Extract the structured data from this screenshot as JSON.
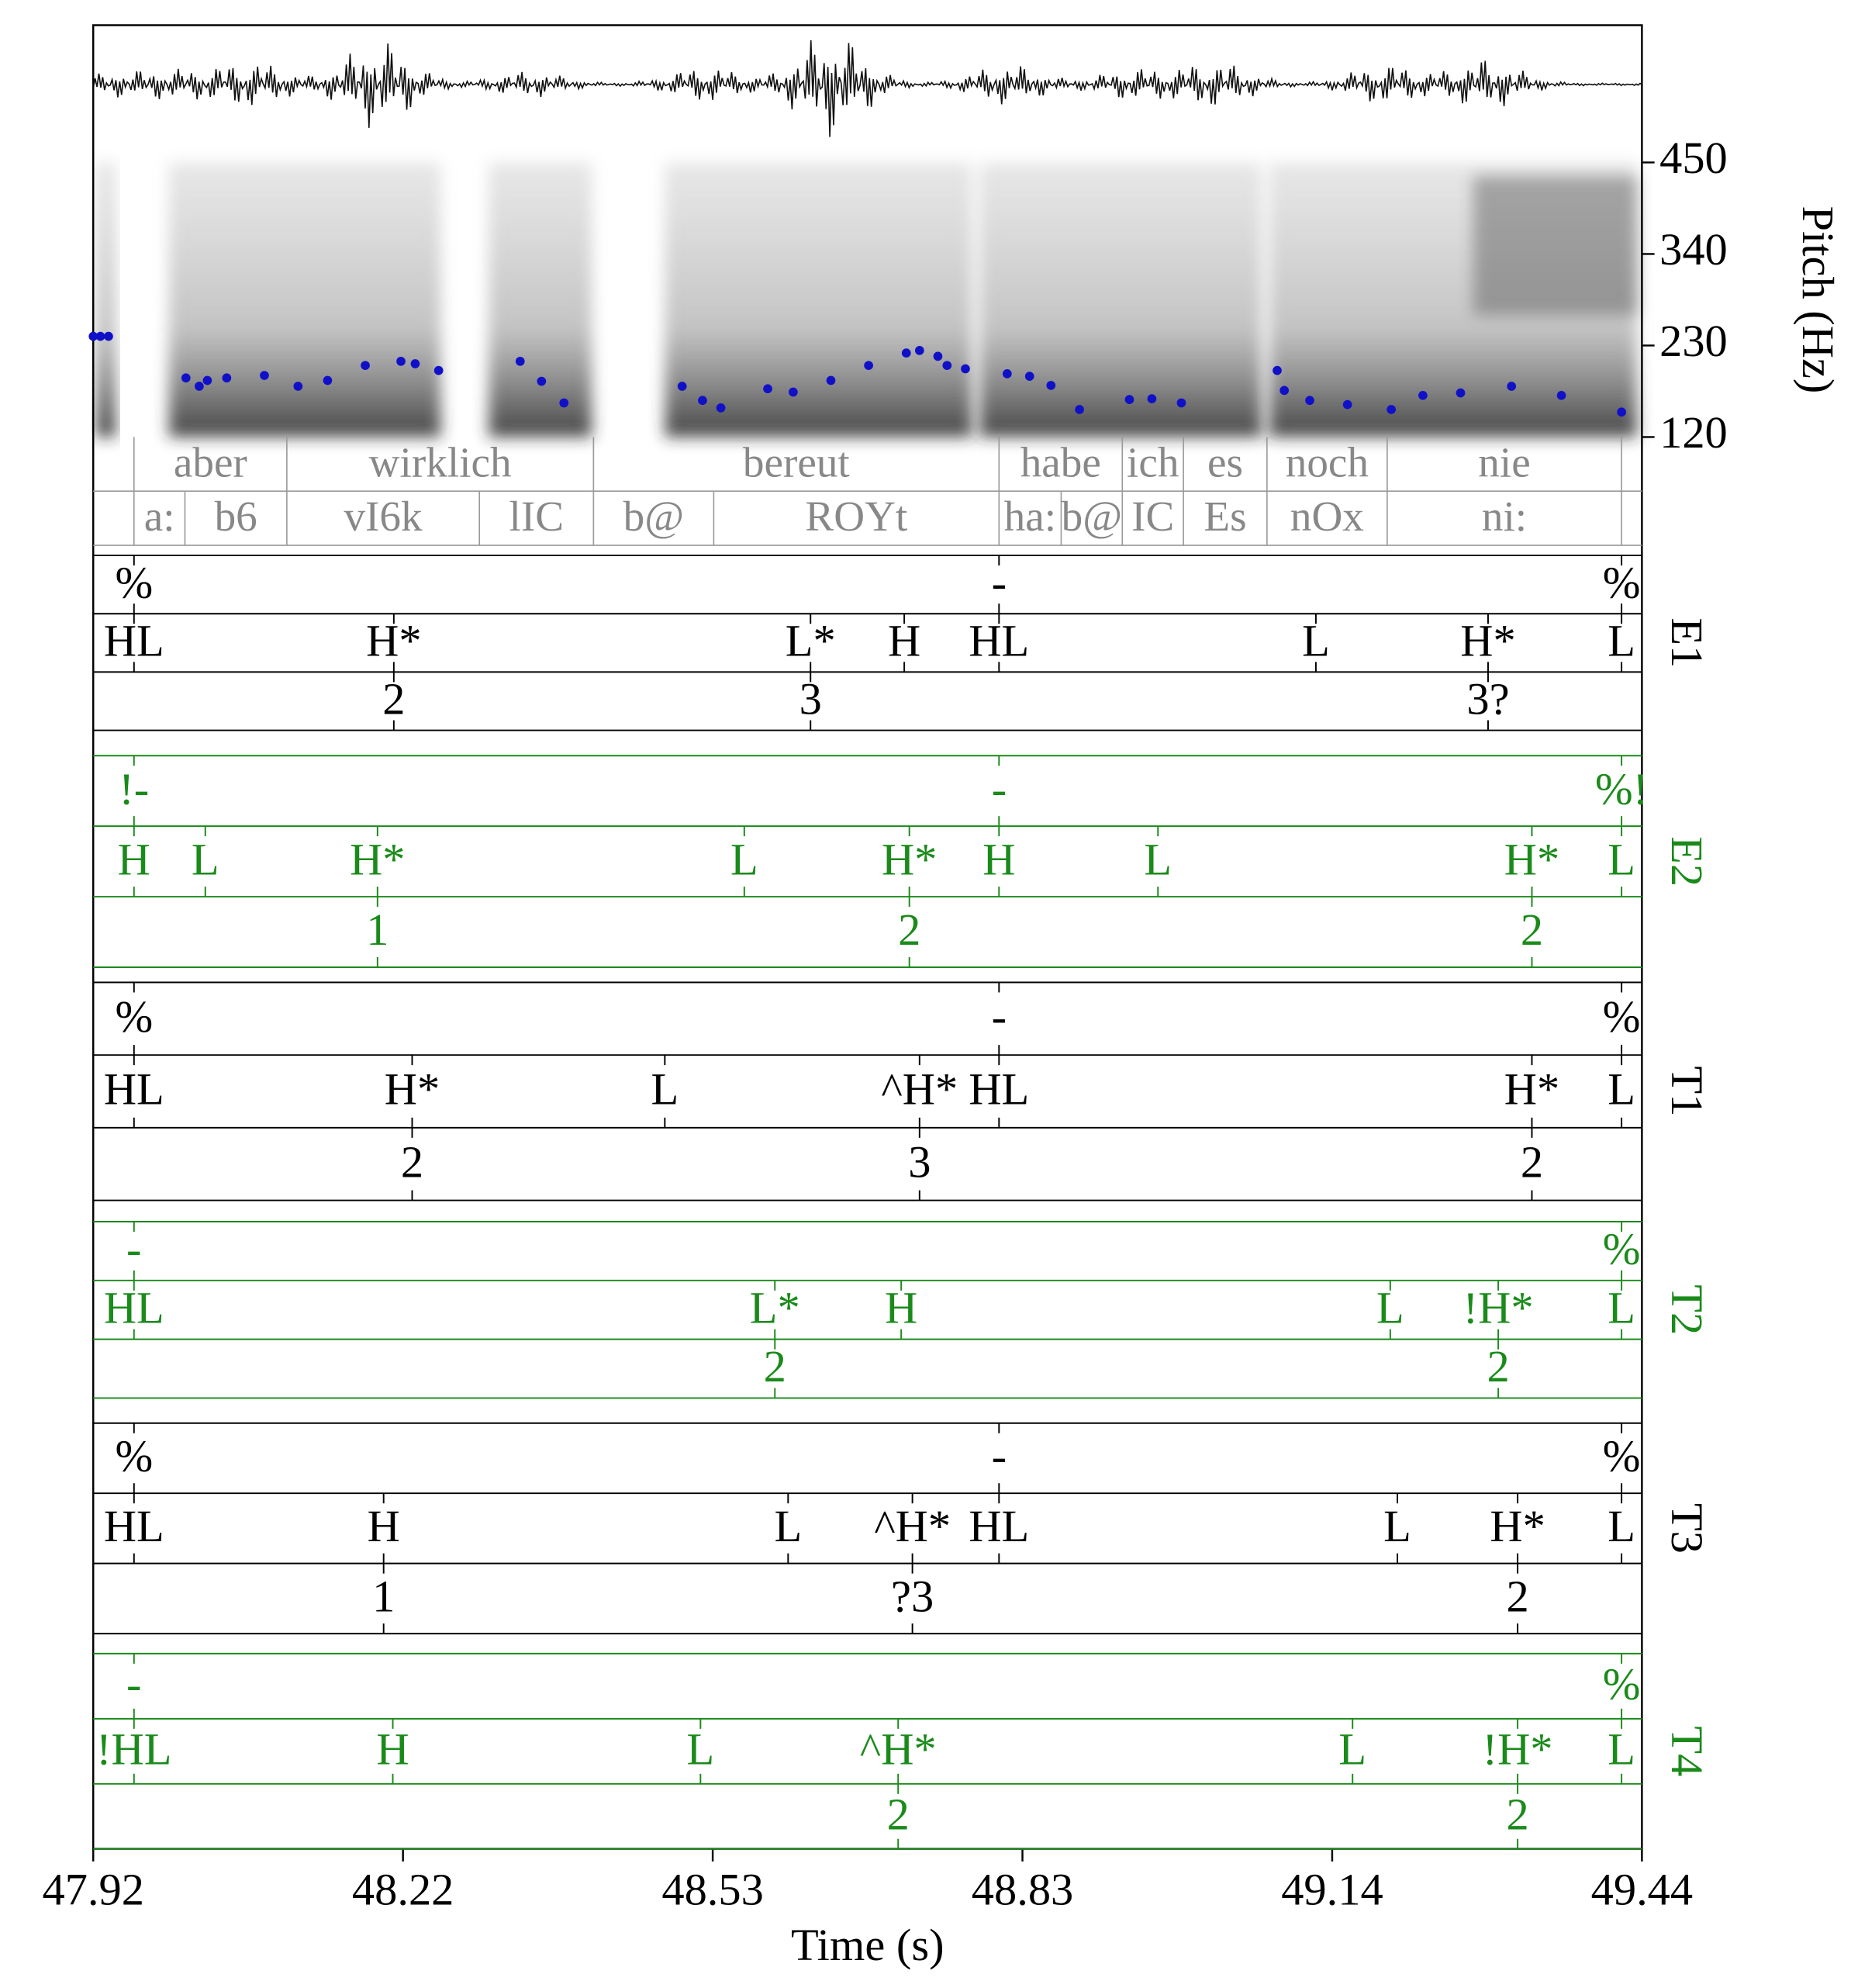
{
  "chart_data": {
    "type": "pitch-annotation",
    "x_label": "Time (s)",
    "y_label": "Pitch (Hz)",
    "xlim": [
      47.92,
      49.44
    ],
    "xticks": [
      47.92,
      {
        "value": 48.224,
        "label": "48.22"
      },
      {
        "value": 48.528,
        "label": "48.53"
      },
      {
        "value": 48.832,
        "label": "48.83"
      },
      {
        "value": 49.136,
        "label": "49.14"
      },
      49.44
    ],
    "ylim": [
      120,
      450
    ],
    "yticks": [
      120,
      230,
      340,
      450
    ],
    "pitch": {
      "color": "#1010c8",
      "x": [
        47.92,
        47.927,
        47.935,
        48.011,
        48.024,
        48.032,
        48.051,
        48.088,
        48.121,
        48.15,
        48.187,
        48.222,
        48.236,
        48.259,
        48.339,
        48.36,
        48.382,
        48.498,
        48.518,
        48.536,
        48.582,
        48.607,
        48.644,
        48.681,
        48.718,
        48.731,
        48.749,
        48.758,
        48.776,
        48.817,
        48.839,
        48.86,
        48.888,
        48.937,
        48.959,
        48.988,
        49.082,
        49.089,
        49.114,
        49.151,
        49.194,
        49.225,
        49.262,
        49.312,
        49.361,
        49.42
      ],
      "values": [
        241,
        241,
        241,
        191,
        181,
        188,
        191,
        194,
        181,
        188,
        206,
        211,
        208,
        200,
        211,
        187,
        161,
        181,
        164,
        155,
        178,
        174,
        188,
        206,
        221,
        224,
        217,
        206,
        202,
        196,
        193,
        182,
        153,
        165,
        166,
        161,
        200,
        176,
        164,
        159,
        153,
        170,
        173,
        181,
        170,
        150
      ]
    },
    "text_tiers": [
      {
        "boundaries": [
          47.96,
          48.11,
          48.411,
          48.809,
          48.93,
          48.99,
          49.072,
          49.19,
          49.42
        ],
        "labels": [
          null,
          "aber",
          "wirklich",
          "bereut",
          "habe",
          "ich",
          "es",
          "noch",
          "nie",
          null
        ]
      },
      {
        "boundaries": [
          47.96,
          48.01,
          48.11,
          48.299,
          48.411,
          48.529,
          48.809,
          48.87,
          48.93,
          48.99,
          49.072,
          49.19,
          49.42
        ],
        "labels": [
          null,
          "a:",
          "b6",
          "vI6k",
          "lIC",
          "b@",
          "ROYt",
          "ha:",
          "b@",
          "IC",
          "Es",
          "nOx",
          "ni:",
          null
        ]
      }
    ],
    "annotators": [
      {
        "name": "E1",
        "color": "#000000",
        "tiers": [
          {
            "x": [
              47.96,
              48.809,
              49.42
            ],
            "labels": [
              "%",
              "-",
              "%"
            ]
          },
          {
            "x": [
              47.96,
              48.215,
              48.624,
              48.716,
              48.809,
              49.12,
              49.289,
              49.42
            ],
            "labels": [
              "HL",
              "H*",
              "L*",
              "H",
              "HL",
              "L",
              "H*",
              "L"
            ]
          },
          {
            "x": [
              48.215,
              48.624,
              49.289
            ],
            "labels": [
              "2",
              "3",
              "3?"
            ]
          }
        ]
      },
      {
        "name": "E2",
        "color": "#1a8a1a",
        "tiers": [
          {
            "x": [
              47.96,
              48.809,
              49.42
            ],
            "labels": [
              "!-",
              "-",
              "%!"
            ]
          },
          {
            "x": [
              47.96,
              48.03,
              48.199,
              48.559,
              48.721,
              48.809,
              48.965,
              49.332,
              49.42
            ],
            "labels": [
              "H",
              "L",
              "H*",
              "L",
              "H*",
              "H",
              "L",
              "H*",
              "L"
            ]
          },
          {
            "x": [
              48.199,
              48.721,
              49.332
            ],
            "labels": [
              "1",
              "2",
              "2"
            ]
          }
        ]
      },
      {
        "name": "T1",
        "color": "#000000",
        "tiers": [
          {
            "x": [
              47.96,
              48.809,
              49.42
            ],
            "labels": [
              "%",
              "-",
              "%"
            ]
          },
          {
            "x": [
              47.96,
              48.233,
              48.481,
              48.731,
              48.809,
              49.332,
              49.42
            ],
            "labels": [
              "HL",
              "H*",
              "L",
              "^H*",
              "HL",
              "H*",
              "L"
            ]
          },
          {
            "x": [
              48.233,
              48.731,
              49.332
            ],
            "labels": [
              "2",
              "3",
              "2"
            ]
          }
        ]
      },
      {
        "name": "T2",
        "color": "#1a8a1a",
        "tiers": [
          {
            "x": [
              47.96,
              49.42
            ],
            "labels": [
              "-",
              "%"
            ]
          },
          {
            "x": [
              47.96,
              48.589,
              48.713,
              49.193,
              49.299,
              49.42
            ],
            "labels": [
              "HL",
              "L*",
              "H",
              "L",
              "!H*",
              "L"
            ]
          },
          {
            "x": [
              48.589,
              49.299
            ],
            "labels": [
              "2",
              "2"
            ]
          }
        ]
      },
      {
        "name": "T3",
        "color": "#000000",
        "tiers": [
          {
            "x": [
              47.96,
              48.809,
              49.42
            ],
            "labels": [
              "%",
              "-",
              "%"
            ]
          },
          {
            "x": [
              47.96,
              48.205,
              48.602,
              48.724,
              48.809,
              49.2,
              49.318,
              49.42
            ],
            "labels": [
              "HL",
              "H",
              "L",
              "^H*",
              "HL",
              "L",
              "H*",
              "L"
            ]
          },
          {
            "x": [
              48.205,
              48.724,
              49.318
            ],
            "labels": [
              "1",
              "?3",
              "2"
            ]
          }
        ]
      },
      {
        "name": "T4",
        "color": "#1a8a1a",
        "tiers": [
          {
            "x": [
              47.96,
              49.42
            ],
            "labels": [
              "-",
              "%"
            ]
          },
          {
            "x": [
              47.96,
              48.214,
              48.516,
              48.71,
              49.156,
              49.318,
              49.42
            ],
            "labels": [
              "!HL",
              "H",
              "L",
              "^H*",
              "L",
              "!H*",
              "L"
            ]
          },
          {
            "x": [
              48.71,
              49.318
            ],
            "labels": [
              "2",
              "2"
            ]
          }
        ]
      }
    ]
  }
}
